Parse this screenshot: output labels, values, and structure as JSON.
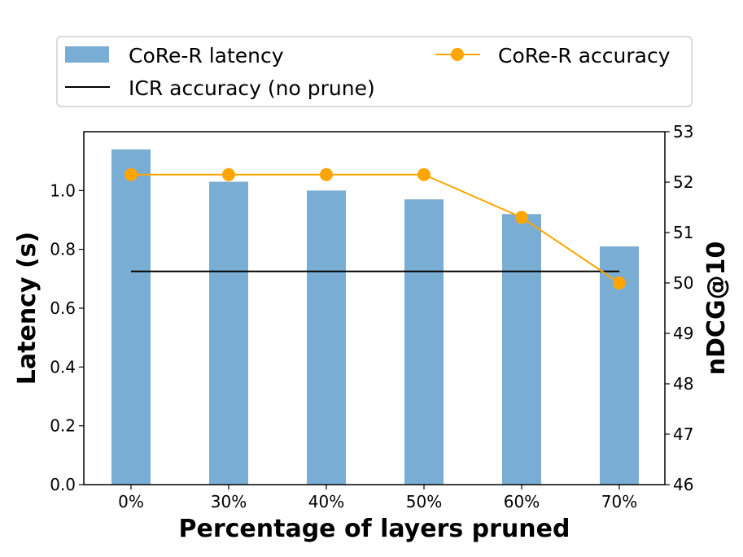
{
  "chart_data": {
    "type": "bar",
    "categories": [
      "0%",
      "30%",
      "40%",
      "50%",
      "60%",
      "70%"
    ],
    "xlabel": "Percentage of layers pruned",
    "left_axis": {
      "label": "Latency (s)",
      "ylim": [
        0,
        1.2
      ],
      "ticks": [
        "0.0",
        "0.2",
        "0.4",
        "0.6",
        "0.8",
        "1.0"
      ],
      "tick_values": [
        0,
        0.2,
        0.4,
        0.6,
        0.8,
        1.0
      ]
    },
    "right_axis": {
      "label": "nDCG@10",
      "ylim": [
        46,
        53
      ],
      "ticks": [
        "46",
        "47",
        "48",
        "49",
        "50",
        "51",
        "52",
        "53"
      ],
      "tick_values": [
        46,
        47,
        48,
        49,
        50,
        51,
        52,
        53
      ]
    },
    "series": [
      {
        "name": "CoRe-R latency",
        "kind": "bar",
        "axis": "left",
        "color": "#7aadd3",
        "values": [
          1.14,
          1.03,
          1.0,
          0.97,
          0.92,
          0.81
        ]
      },
      {
        "name": "CoRe-R accuracy",
        "kind": "line-marker",
        "axis": "right",
        "color": "#ffa500",
        "values": [
          52.15,
          52.15,
          52.15,
          52.15,
          51.3,
          50.0
        ]
      },
      {
        "name": "ICR accuracy (no prune)",
        "kind": "hline",
        "axis": "right",
        "color": "#000000",
        "value": 50.23
      }
    ],
    "legend": {
      "placement": "top",
      "entries": [
        "CoRe-R latency",
        "CoRe-R accuracy",
        "ICR accuracy (no prune)"
      ]
    },
    "grid": false
  }
}
